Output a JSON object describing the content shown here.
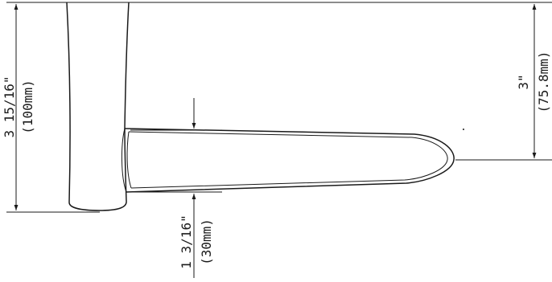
{
  "dimensions": {
    "overall_height": {
      "imperial": "3 15/16\"",
      "metric": "(100mm)"
    },
    "projection": {
      "imperial": "3\"",
      "metric": "(75.8mm)"
    },
    "handle_thickness": {
      "imperial": "1 3/16\"",
      "metric": "(30mm)"
    }
  },
  "colors": {
    "line": "#1a1a1a",
    "background": "#ffffff"
  }
}
